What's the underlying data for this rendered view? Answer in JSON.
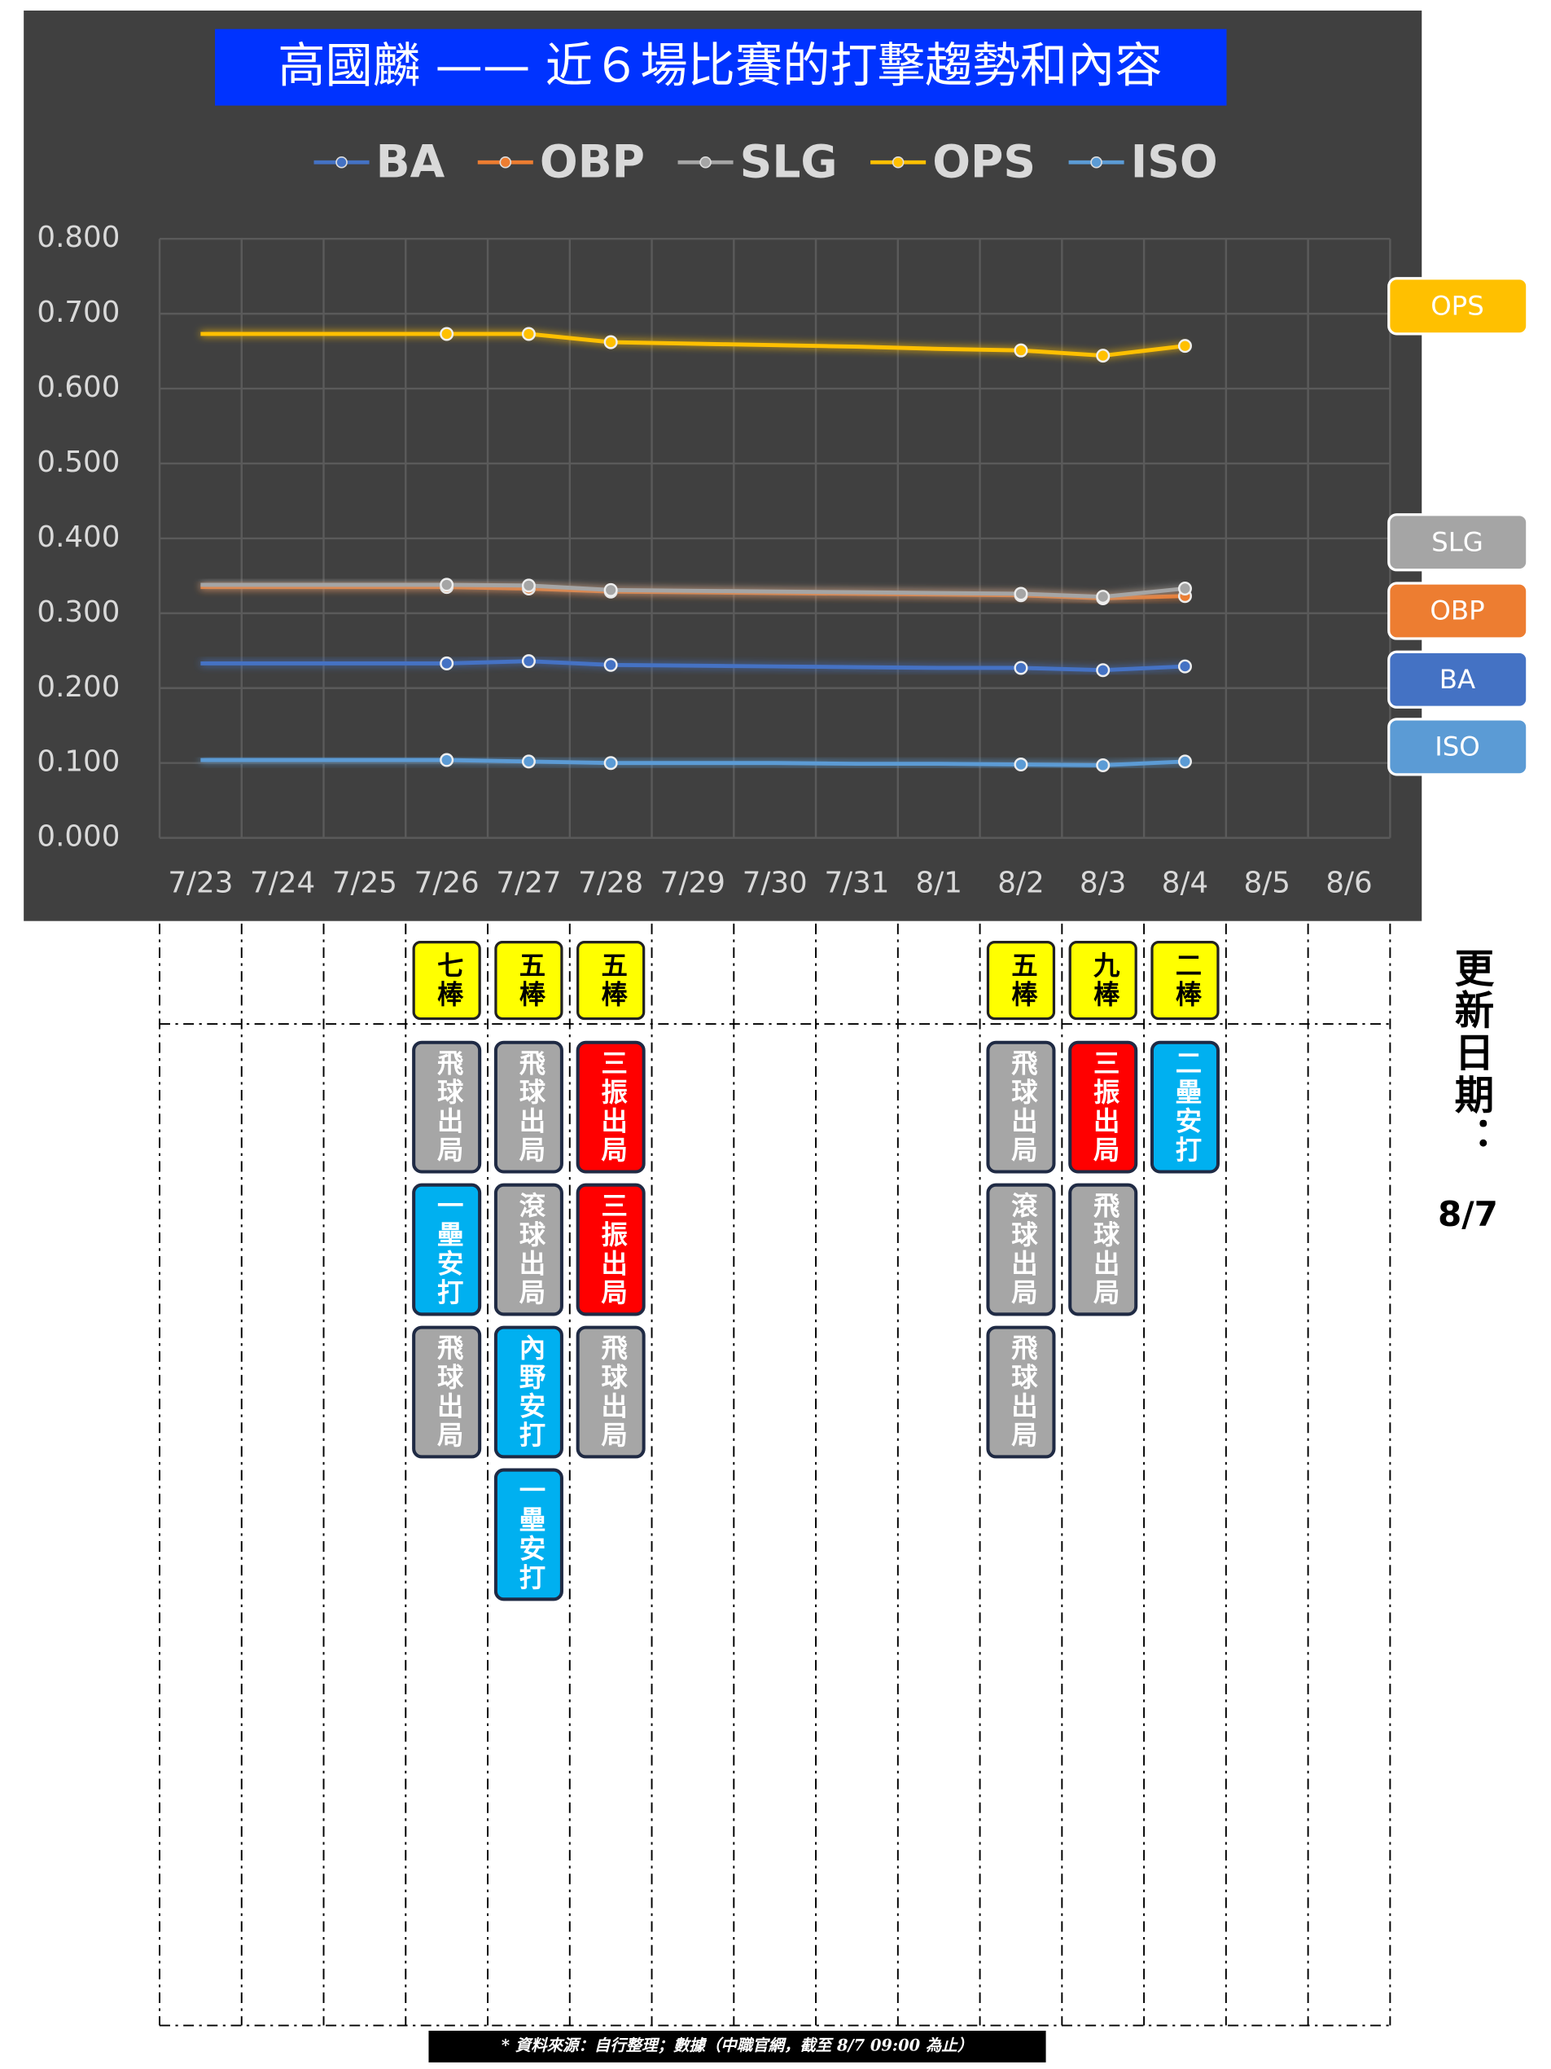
{
  "chart_data": {
    "type": "line",
    "title": "高國麟 —— 近６場比賽的打擊趨勢和內容",
    "categories": [
      "7/23",
      "7/24",
      "7/25",
      "7/26",
      "7/27",
      "7/28",
      "7/29",
      "7/30",
      "7/31",
      "8/1",
      "8/2",
      "8/3",
      "8/4",
      "8/5",
      "8/6"
    ],
    "ylim": [
      0,
      0.8
    ],
    "yticks": [
      {
        "value": 0,
        "label": "0.000"
      },
      {
        "value": 0.1,
        "label": "0.100"
      },
      {
        "value": 0.2,
        "label": "0.200"
      },
      {
        "value": 0.3,
        "label": "0.300"
      },
      {
        "value": 0.4,
        "label": "0.400"
      },
      {
        "value": 0.5,
        "label": "0.500"
      },
      {
        "value": 0.6,
        "label": "0.600"
      },
      {
        "value": 0.7,
        "label": "0.700"
      },
      {
        "value": 0.8,
        "label": "0.800"
      }
    ],
    "grid": true,
    "series": [
      {
        "name": "BA",
        "color": "#4472c4",
        "values": [
          0.233,
          0.233,
          0.233,
          0.233,
          0.236,
          0.231,
          0.23,
          0.229,
          0.228,
          0.227,
          0.227,
          0.224,
          0.229,
          null,
          null
        ]
      },
      {
        "name": "OBP",
        "color": "#ed7d31",
        "values": [
          0.335,
          0.335,
          0.335,
          0.335,
          0.333,
          0.329,
          0.328,
          0.327,
          0.326,
          0.325,
          0.324,
          0.32,
          0.323,
          null,
          null
        ]
      },
      {
        "name": "SLG",
        "color": "#a5a5a5",
        "values": [
          0.338,
          0.338,
          0.338,
          0.338,
          0.337,
          0.331,
          0.33,
          0.329,
          0.328,
          0.327,
          0.326,
          0.322,
          0.333,
          null,
          null
        ]
      },
      {
        "name": "OPS",
        "color": "#ffc000",
        "values": [
          0.673,
          0.673,
          0.673,
          0.673,
          0.673,
          0.662,
          0.66,
          0.658,
          0.656,
          0.653,
          0.651,
          0.644,
          0.657,
          null,
          null
        ]
      },
      {
        "name": "ISO",
        "color": "#5b9bd5",
        "values": [
          0.104,
          0.104,
          0.104,
          0.104,
          0.102,
          0.1,
          0.1,
          0.1,
          0.099,
          0.099,
          0.098,
          0.097,
          0.102,
          null,
          null
        ]
      }
    ],
    "games": [
      null,
      null,
      null,
      {
        "order": "七棒",
        "results": [
          {
            "label": "飛球出局",
            "color": "#a6a6a6"
          },
          {
            "label": "一壘安打",
            "color": "#00b0f0"
          },
          {
            "label": "飛球出局",
            "color": "#a6a6a6"
          }
        ]
      },
      {
        "order": "五棒",
        "results": [
          {
            "label": "飛球出局",
            "color": "#a6a6a6"
          },
          {
            "label": "滾球出局",
            "color": "#a6a6a6"
          },
          {
            "label": "內野安打",
            "color": "#00b0f0"
          },
          {
            "label": "一壘安打",
            "color": "#00b0f0"
          }
        ]
      },
      {
        "order": "五棒",
        "results": [
          {
            "label": "三振出局",
            "color": "#ff0000"
          },
          {
            "label": "三振出局",
            "color": "#ff0000"
          },
          {
            "label": "飛球出局",
            "color": "#a6a6a6"
          }
        ]
      },
      null,
      null,
      null,
      null,
      {
        "order": "五棒",
        "results": [
          {
            "label": "飛球出局",
            "color": "#a6a6a6"
          },
          {
            "label": "滾球出局",
            "color": "#a6a6a6"
          },
          {
            "label": "飛球出局",
            "color": "#a6a6a6"
          }
        ]
      },
      {
        "order": "九棒",
        "results": [
          {
            "label": "三振出局",
            "color": "#ff0000"
          },
          {
            "label": "飛球出局",
            "color": "#a6a6a6"
          }
        ]
      },
      {
        "order": "二棒",
        "results": [
          {
            "label": "二壘安打",
            "color": "#00b0f0"
          }
        ]
      },
      null,
      null
    ],
    "update_label": "更新日期：",
    "update_date": "8/7",
    "source": "* 資料來源：自行整理；數據（中職官網，截至 8/7 09:00 為止）"
  }
}
